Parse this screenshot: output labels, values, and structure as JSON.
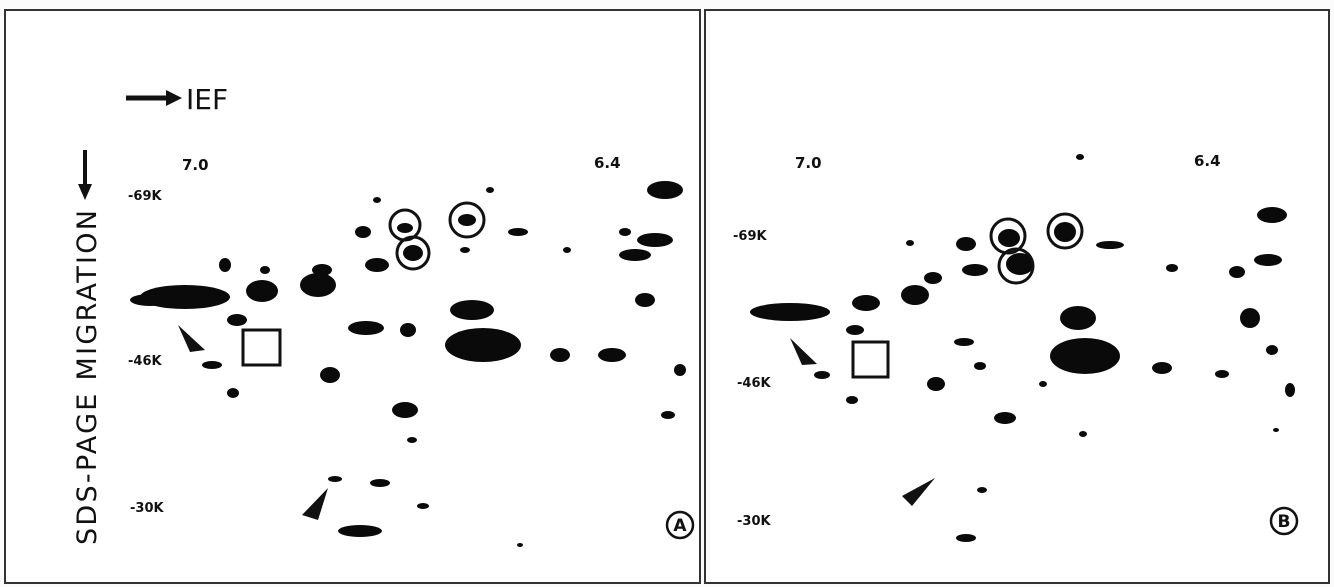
{
  "axis_labels": {
    "ief": "IEF",
    "sds_page": "SDS-PAGE MIGRATION"
  },
  "panels": [
    {
      "label": "A",
      "ph_markers": [
        "7.0",
        "6.4"
      ],
      "mw_markers": [
        "-69K",
        "-46K",
        "-30K"
      ]
    },
    {
      "label": "B",
      "ph_markers": [
        "7.0",
        "6.4"
      ],
      "mw_markers": [
        "-69K",
        "-46K",
        "-30K"
      ]
    }
  ]
}
